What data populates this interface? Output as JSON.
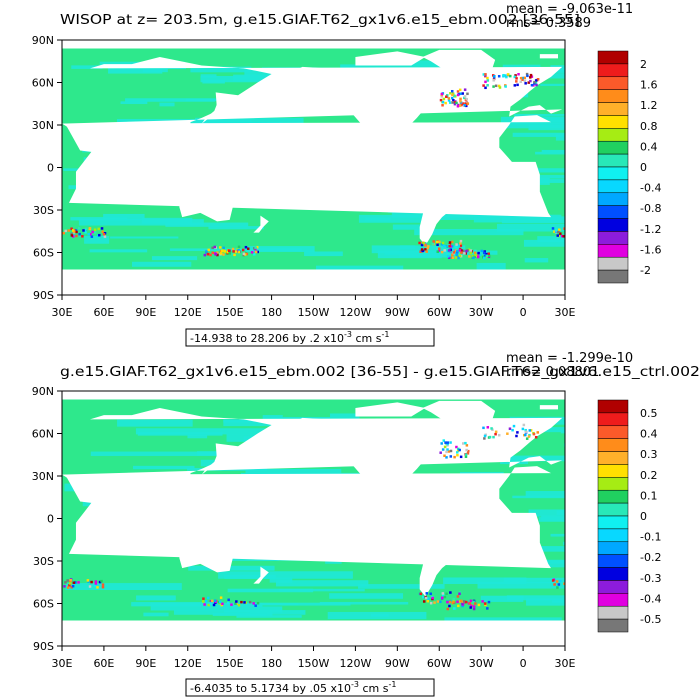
{
  "panels": [
    {
      "title": "WISOP at z= 203.5m, g.e15.GIAF.T62_gx1v6.e15_ebm.002 [36-55]",
      "mean_text": "mean = -9.063e-11",
      "rms_text": "rms= 0.3589",
      "range_text": "-14.938 to 28.206 by .2 x10",
      "range_exponent": "-3",
      "range_units": " cm s",
      "range_units_exponent": "-1",
      "colorbar_labels": [
        "2",
        "1.6",
        "1.2",
        "0.8",
        "0.4",
        "0",
        "-0.4",
        "-0.8",
        "-1.2",
        "-1.6",
        "-2"
      ]
    },
    {
      "title": "g.e15.GIAF.T62_gx1v6.e15_ebm.002 [36-55] - g.e15.GIAF.T62_gx1v6.e15_ctrl.002",
      "mean_text": "mean = -1.299e-10",
      "rms_text": "rms= 0.08801",
      "range_text": "-6.4035 to 5.1734 by .05 x10",
      "range_exponent": "-3",
      "range_units": " cm s",
      "range_units_exponent": "-1",
      "colorbar_labels": [
        "0.5",
        "0.4",
        "0.3",
        "0.2",
        "0.1",
        "0",
        "-0.1",
        "-0.2",
        "-0.3",
        "-0.4",
        "-0.5"
      ]
    }
  ],
  "lat_labels": [
    "90N",
    "60N",
    "30N",
    "0",
    "30S",
    "60S",
    "90S"
  ],
  "lon_labels": [
    "30E",
    "60E",
    "90E",
    "120E",
    "150E",
    "180",
    "150W",
    "120W",
    "90W",
    "60W",
    "30W",
    "0",
    "30E"
  ],
  "colors": {
    "ocean": "#2ee88c",
    "ocean_alt": "#1fe8d8",
    "land": "#ffffff",
    "colorbar": [
      "#b00000",
      "#ee1c1c",
      "#fb5a2a",
      "#ff8c1a",
      "#ffb02a",
      "#ffe000",
      "#a6ec14",
      "#20d060",
      "#28e8b8",
      "#10f0f0",
      "#08d8ff",
      "#00a8ff",
      "#0050ff",
      "#0000e0",
      "#8c1cdc",
      "#e000e0",
      "#c8c8c8",
      "#777777"
    ]
  }
}
